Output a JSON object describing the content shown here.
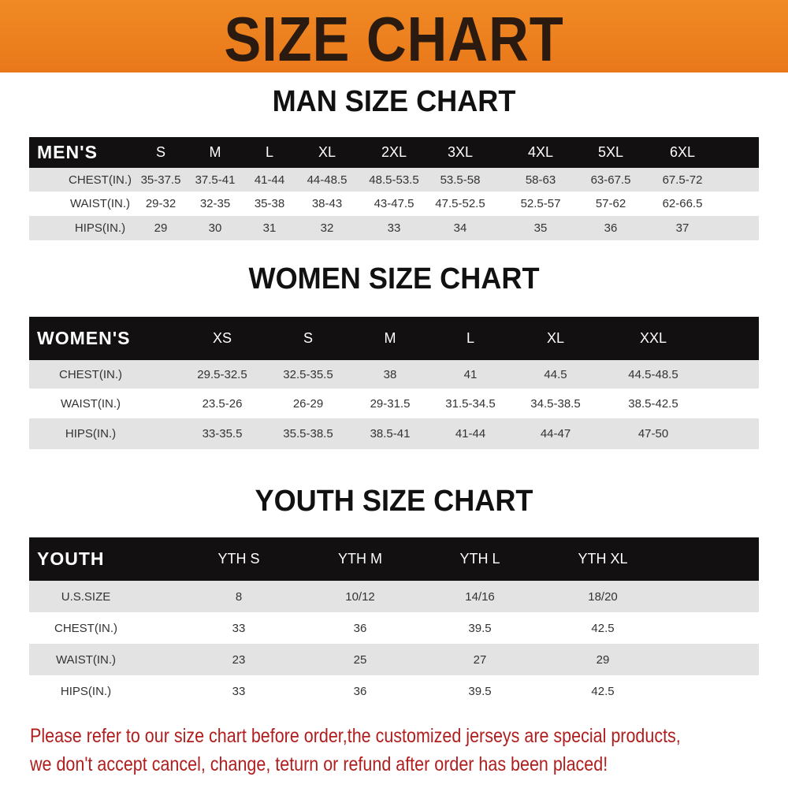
{
  "banner": {
    "title": "SIZE CHART"
  },
  "men": {
    "title": "MAN SIZE CHART",
    "header": [
      "MEN'S",
      "S",
      "M",
      "L",
      "XL",
      "2XL",
      "3XL",
      "4XL",
      "5XL",
      "6XL"
    ],
    "rows": [
      [
        "CHEST(IN.)",
        "35-37.5",
        "37.5-41",
        "41-44",
        "44-48.5",
        "48.5-53.5",
        "53.5-58",
        "58-63",
        "63-67.5",
        "67.5-72"
      ],
      [
        "WAIST(IN.)",
        "29-32",
        "32-35",
        "35-38",
        "38-43",
        "43-47.5",
        "47.5-52.5",
        "52.5-57",
        "57-62",
        "62-66.5"
      ],
      [
        "HIPS(IN.)",
        "29",
        "30",
        "31",
        "32",
        "33",
        "34",
        "35",
        "36",
        "37"
      ]
    ]
  },
  "women": {
    "title": "WOMEN SIZE CHART",
    "header": [
      "WOMEN'S",
      "XS",
      "S",
      "M",
      "L",
      "XL",
      "XXL"
    ],
    "rows": [
      [
        "CHEST(IN.)",
        "29.5-32.5",
        "32.5-35.5",
        "38",
        "41",
        "44.5",
        "44.5-48.5"
      ],
      [
        "WAIST(IN.)",
        "23.5-26",
        "26-29",
        "29-31.5",
        "31.5-34.5",
        "34.5-38.5",
        "38.5-42.5"
      ],
      [
        "HIPS(IN.)",
        "33-35.5",
        "35.5-38.5",
        "38.5-41",
        "41-44",
        "44-47",
        "47-50"
      ]
    ]
  },
  "youth": {
    "title": "YOUTH SIZE CHART",
    "header": [
      "YOUTH",
      "YTH S",
      "YTH M",
      "YTH L",
      "YTH XL"
    ],
    "rows": [
      [
        "U.S.SIZE",
        "8",
        "10/12",
        "14/16",
        "18/20"
      ],
      [
        "CHEST(IN.)",
        "33",
        "36",
        "39.5",
        "42.5"
      ],
      [
        "WAIST(IN.)",
        "23",
        "25",
        "27",
        "29"
      ],
      [
        "HIPS(IN.)",
        "33",
        "36",
        "39.5",
        "42.5"
      ]
    ]
  },
  "notice": {
    "line1": "Please refer to our size chart before order,the customized jerseys are special products,",
    "line2": "we don't accept cancel, change, teturn or refund after order has been placed!",
    "color": "#b01e1e"
  },
  "colors": {
    "banner": "#ee8320",
    "header_row": "#121010",
    "stripe": "#e3e3e3"
  }
}
